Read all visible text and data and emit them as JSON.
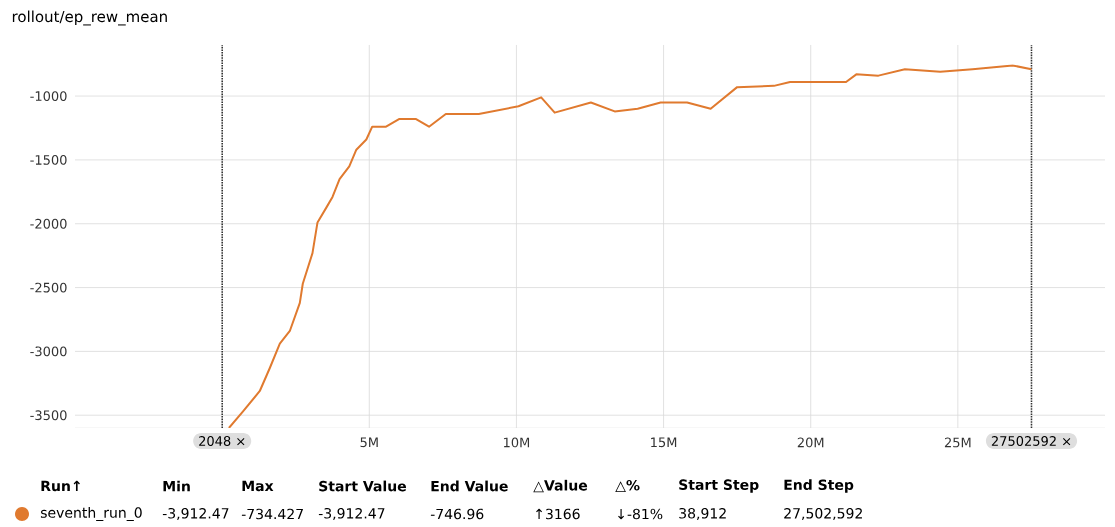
{
  "chart_data": {
    "type": "line",
    "title": "rollout/ep_rew_mean",
    "x": [
      230000,
      710000,
      1280000,
      1620000,
      1960000,
      2300000,
      2640000,
      2740000,
      3070000,
      3240000,
      3550000,
      3750000,
      3990000,
      4320000,
      4560000,
      4900000,
      5100000,
      5570000,
      6010000,
      6590000,
      7030000,
      7600000,
      8720000,
      10070000,
      10840000,
      11300000,
      12530000,
      13340000,
      14120000,
      14900000,
      15800000,
      16600000,
      17500000,
      18750000,
      19300000,
      20400000,
      21200000,
      21550000,
      22300000,
      23200000,
      24400000,
      25500000,
      26860000,
      27500000
    ],
    "series": [
      {
        "name": "seventh_run_0",
        "color": "#e07a2f",
        "values": [
          -3600,
          -3470,
          -3310,
          -3130,
          -2940,
          -2840,
          -2620,
          -2470,
          -2230,
          -1990,
          -1870,
          -1790,
          -1650,
          -1550,
          -1420,
          -1340,
          -1240,
          -1240,
          -1180,
          -1180,
          -1240,
          -1140,
          -1140,
          -1080,
          -1010,
          -1130,
          -1050,
          -1120,
          -1100,
          -1050,
          -1050,
          -1100,
          -930,
          -920,
          -890,
          -890,
          -890,
          -830,
          -840,
          -790,
          -810,
          -790,
          -760,
          -790
        ]
      }
    ],
    "xlim": [
      -5000000,
      30000000
    ],
    "ylim": [
      -3600,
      -600
    ],
    "xticks": [
      {
        "value": 5000000,
        "label": "5M"
      },
      {
        "value": 10000000,
        "label": "10M"
      },
      {
        "value": 15000000,
        "label": "15M"
      },
      {
        "value": 20000000,
        "label": "20M"
      },
      {
        "value": 25000000,
        "label": "25M"
      }
    ],
    "yticks": [
      -3500,
      -3000,
      -2500,
      -2000,
      -1500,
      -1000
    ],
    "grid": true,
    "marker": "none",
    "line_style": "solid",
    "legend": "bottom",
    "ref_lines": [
      {
        "axis": "x",
        "value": 2048,
        "label": "2048 ×",
        "color": "#333333",
        "line_style": "dotted"
      },
      {
        "axis": "x",
        "value": 27502592,
        "label": "27502592 ×",
        "color": "#333333",
        "line_style": "dotted"
      }
    ],
    "annotations": [
      "Run↑",
      "Min",
      "Max",
      "Start Value",
      "End Value",
      "△Value",
      "△%",
      "Start Step",
      "End Step",
      "-3,912.47",
      "-734.427",
      "-3,912.47",
      "-746.96",
      "↑3166",
      "↓-81%",
      "38,912",
      "27,502,592"
    ]
  }
}
